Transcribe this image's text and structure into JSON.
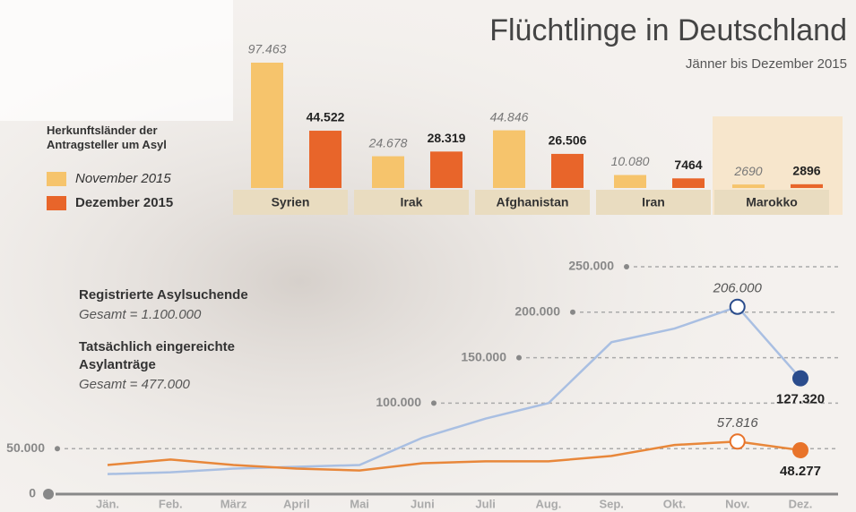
{
  "chart_data": [
    {
      "type": "bar",
      "title": "Flüchtlinge in Deutschland",
      "subtitle": "Jänner bis Dezember 2015",
      "legend_title": "Herkunftsländer der Antragsteller um Asyl",
      "categories": [
        "Syrien",
        "Irak",
        "Afghanistan",
        "Iran",
        "Marokko"
      ],
      "series": [
        {
          "name": "November 2015",
          "color": "#f6c46c",
          "values": [
            97463,
            24678,
            44846,
            10080,
            2690
          ],
          "value_labels": [
            "97.463",
            "24.678",
            "44.846",
            "10.080",
            "2690"
          ]
        },
        {
          "name": "Dezember 2015",
          "color": "#e8652a",
          "values": [
            44522,
            28319,
            26506,
            7464,
            2896
          ],
          "value_labels": [
            "44.522",
            "28.319",
            "26.506",
            "7464",
            "2896"
          ]
        }
      ]
    },
    {
      "type": "line",
      "categories": [
        "Jän.",
        "Feb.",
        "März",
        "April",
        "Mai",
        "Juni",
        "Juli",
        "Aug.",
        "Sep.",
        "Okt.",
        "Nov.",
        "Dez."
      ],
      "ylim": [
        0,
        250000
      ],
      "yticks": [
        0,
        {
          "value": 50000,
          "label": "50.000"
        },
        {
          "value": 100000,
          "label": "100.000"
        },
        {
          "value": 150000,
          "label": "150.000"
        },
        {
          "value": 200000,
          "label": "200.000"
        },
        {
          "value": 250000,
          "label": "250.000"
        }
      ],
      "grid": true,
      "series": [
        {
          "name": "Registrierte Asylsuchende",
          "note": "Gesamt = 1.100.000",
          "color": "#a9bfe2",
          "marker_color": "#2a4c8c",
          "values": [
            22000,
            24000,
            28000,
            30000,
            32000,
            62000,
            83000,
            100000,
            167000,
            182000,
            206000,
            127320
          ],
          "value_labels": [
            null,
            null,
            null,
            null,
            null,
            null,
            null,
            null,
            null,
            null,
            "206.000",
            "127.320"
          ]
        },
        {
          "name": "Tatsächlich eingereichte Asylanträge",
          "note": "Gesamt = 477.000",
          "color": "#e8873a",
          "marker_color": "#e8732a",
          "values": [
            32000,
            38000,
            32000,
            28000,
            26000,
            34000,
            36000,
            36000,
            42000,
            54000,
            57816,
            48277
          ],
          "value_labels": [
            null,
            null,
            null,
            null,
            null,
            null,
            null,
            null,
            null,
            null,
            "57.816",
            "48.277"
          ]
        }
      ]
    }
  ]
}
